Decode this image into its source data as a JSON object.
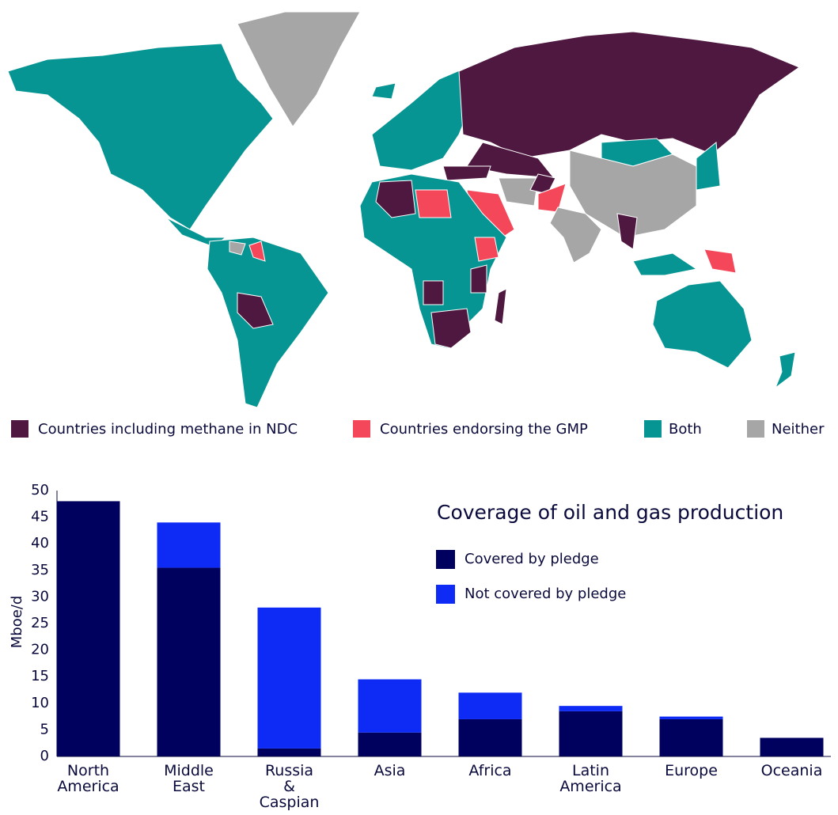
{
  "map": {
    "legend": [
      {
        "label": "Countries including methane in NDC",
        "color": "#4f1840"
      },
      {
        "label": "Countries endorsing the GMP",
        "color": "#f5475a"
      },
      {
        "label": "Both",
        "color": "#079593"
      },
      {
        "label": "Neither",
        "color": "#a6a6a6"
      }
    ]
  },
  "chart_data": {
    "type": "bar",
    "stacked": true,
    "title": "Coverage of oil and gas production",
    "y_label": "Mboe/d",
    "categories": [
      "North\nAmerica",
      "Middle\nEast",
      "Russia\n&\nCaspian",
      "Asia",
      "Africa",
      "Latin\nAmerica",
      "Europe",
      "Oceania"
    ],
    "series": [
      {
        "name": "Covered by pledge",
        "color": "#00005e",
        "values": [
          48,
          35.5,
          1.5,
          4.5,
          7,
          8.5,
          7,
          3.5
        ]
      },
      {
        "name": "Not covered by pledge",
        "color": "#0d2bf5",
        "values": [
          0,
          8.5,
          26.5,
          10,
          5,
          1,
          0.5,
          0
        ]
      }
    ],
    "ylim": [
      0,
      50
    ],
    "yticks": [
      0,
      5,
      10,
      15,
      20,
      25,
      30,
      35,
      40,
      45,
      50
    ],
    "grid": false
  }
}
